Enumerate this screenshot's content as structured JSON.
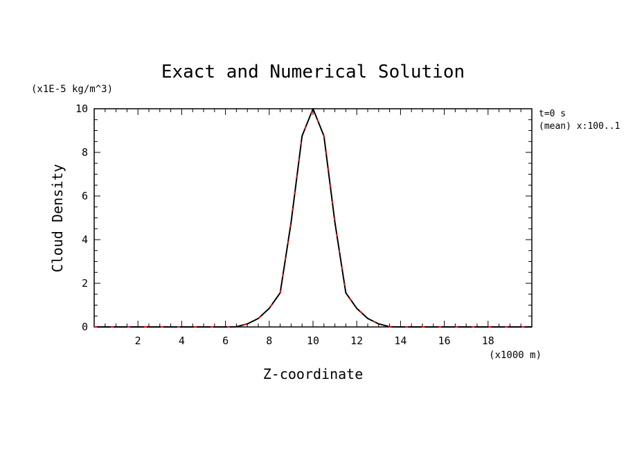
{
  "chart_data": {
    "type": "line",
    "title": "Exact and Numerical Solution",
    "xlabel": "Z-coordinate",
    "ylabel": "Cloud Density",
    "x_unit": "(x1000 m)",
    "y_unit": "(x1E-5 kg/m^3)",
    "xlim": [
      0,
      20
    ],
    "ylim": [
      0,
      10
    ],
    "x_ticks": [
      "2",
      "4",
      "6",
      "8",
      "10",
      "12",
      "14",
      "16",
      "18"
    ],
    "y_ticks": [
      "0",
      "2",
      "4",
      "6",
      "8",
      "10"
    ],
    "annotations": [
      "t=0 s",
      "(mean) x:100..1"
    ],
    "grid": false,
    "series": [
      {
        "style": "solid",
        "color": "#000000",
        "x": [
          0,
          1,
          2,
          3,
          4,
          5,
          6,
          6.5,
          7,
          7.5,
          8,
          8.5,
          9,
          9.5,
          10,
          10.5,
          11,
          11.5,
          12,
          12.5,
          13,
          13.5,
          14,
          15,
          16,
          17,
          18,
          19,
          20
        ],
        "y": [
          0,
          0,
          0,
          0,
          0,
          0,
          0,
          0.01,
          0.14,
          0.39,
          0.85,
          1.56,
          4.8,
          8.75,
          10,
          8.75,
          4.8,
          1.56,
          0.85,
          0.39,
          0.14,
          0.01,
          0,
          0,
          0,
          0,
          0,
          0,
          0
        ]
      },
      {
        "style": "dashed",
        "color": "#ff0000",
        "x": [
          0,
          1,
          2,
          3,
          4,
          5,
          6,
          6.5,
          7,
          7.5,
          8,
          8.5,
          9,
          9.5,
          10,
          10.5,
          11,
          11.5,
          12,
          12.5,
          13,
          13.5,
          14,
          15,
          16,
          17,
          18,
          19,
          20
        ],
        "y": [
          0,
          0,
          0,
          0,
          0,
          0,
          0,
          0.01,
          0.14,
          0.39,
          0.85,
          1.56,
          4.8,
          8.75,
          10,
          8.75,
          4.8,
          1.56,
          0.85,
          0.39,
          0.14,
          0.01,
          0,
          0,
          0,
          0,
          0,
          0,
          0
        ]
      }
    ]
  }
}
